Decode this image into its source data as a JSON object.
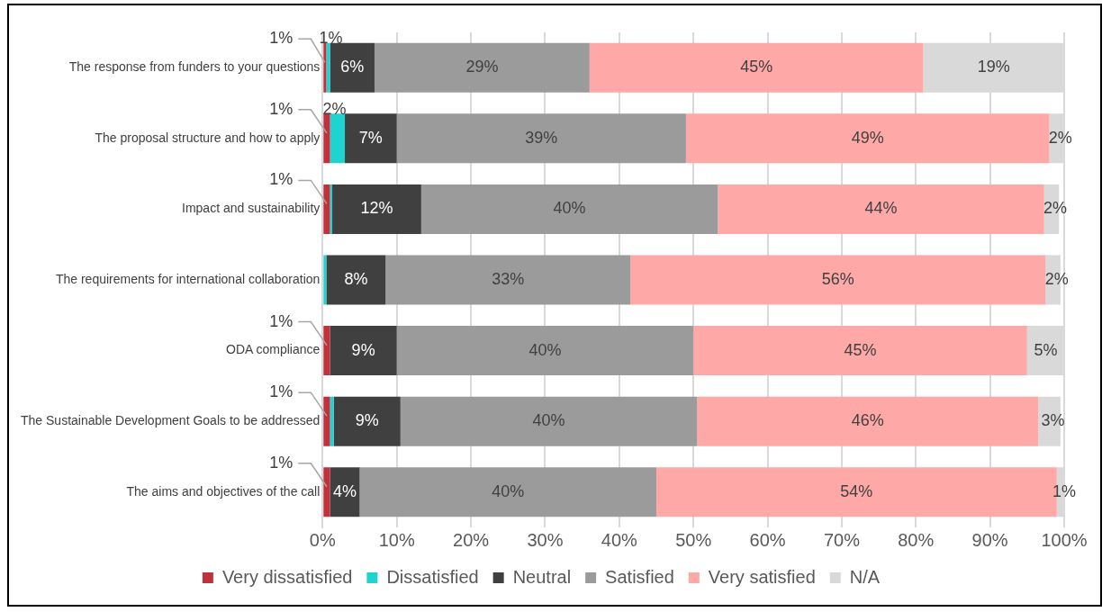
{
  "chart_data": {
    "type": "bar",
    "orientation": "horizontal",
    "stacked": true,
    "categories": [
      "The response from funders to your questions",
      "The proposal structure and how to apply",
      "Impact and sustainability",
      "The requirements for international collaboration",
      "ODA compliance",
      "The Sustainable Development Goals to be addressed",
      "The aims and objectives of the call"
    ],
    "series": [
      {
        "name": "Very dissatisfied",
        "color": "#c0313b",
        "values": [
          0.5,
          1,
          1,
          null,
          1,
          1,
          1
        ],
        "value_labels": [
          "1%",
          "1%",
          "1%",
          null,
          "1%",
          "1%",
          "1%"
        ]
      },
      {
        "name": "Dissatisfied",
        "color": "#1fd4d0",
        "values": [
          0.5,
          2,
          0.3,
          0.5,
          null,
          0.5,
          null
        ],
        "value_labels": [
          "1%",
          "2%",
          null,
          null,
          null,
          null,
          null
        ]
      },
      {
        "name": "Neutral",
        "color": "#404040",
        "values": [
          6,
          7,
          12,
          8,
          9,
          9,
          4
        ],
        "value_labels": [
          "6%",
          "7%",
          "12%",
          "8%",
          "9%",
          "9%",
          "4%"
        ]
      },
      {
        "name": "Satisfied",
        "color": "#9b9b9b",
        "values": [
          29,
          39,
          40,
          33,
          40,
          40,
          40
        ],
        "value_labels": [
          "29%",
          "39%",
          "40%",
          "33%",
          "40%",
          "40%",
          "40%"
        ]
      },
      {
        "name": "Very satisfied",
        "color": "#ffa8a8",
        "values": [
          45,
          49,
          44,
          56,
          45,
          46,
          54
        ],
        "value_labels": [
          "45%",
          "49%",
          "44%",
          "56%",
          "45%",
          "46%",
          "54%"
        ]
      },
      {
        "name": "N/A",
        "color": "#d9d9d9",
        "values": [
          19,
          2,
          2,
          2,
          5,
          3,
          1
        ],
        "value_labels": [
          "19%",
          "2%",
          "2%",
          "2%",
          "5%",
          "3%",
          "1%"
        ]
      }
    ],
    "xlim": [
      0,
      100
    ],
    "xticks": [
      {
        "value": 0,
        "label": "0%"
      },
      {
        "value": 10,
        "label": "10%"
      },
      {
        "value": 20,
        "label": "20%"
      },
      {
        "value": 30,
        "label": "30%"
      },
      {
        "value": 40,
        "label": "40%"
      },
      {
        "value": 50,
        "label": "50%"
      },
      {
        "value": 60,
        "label": "60%"
      },
      {
        "value": 70,
        "label": "70%"
      },
      {
        "value": 80,
        "label": "80%"
      },
      {
        "value": 90,
        "label": "90%"
      },
      {
        "value": 100,
        "label": "100%"
      }
    ],
    "grid": "x",
    "legend": "bottom"
  }
}
